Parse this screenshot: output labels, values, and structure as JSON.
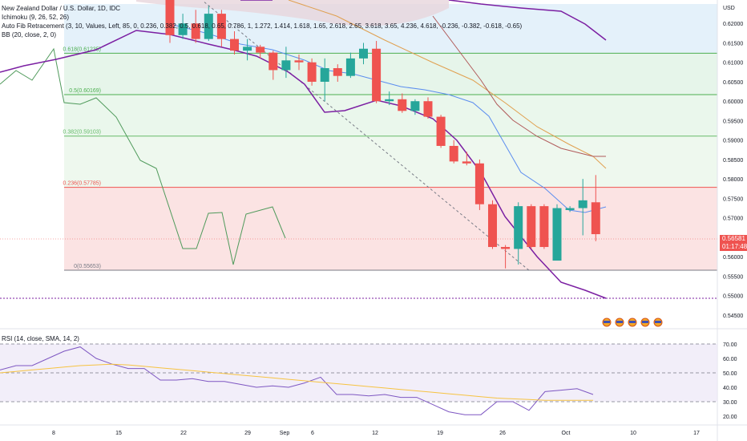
{
  "header": {
    "symbol": "New Zealand Dollar / U.S. Dollar, 1D, IDC",
    "ind1": "Ichimoku (9, 26, 52, 26)",
    "ind2": "Auto Fib Retracement (3, 10, Values, Left, 85, 0, 0.236, 0.382, 0.5, 0.618, 0.65, 0.786, 1, 1.272, 1.414, 1.618, 1.65, 2.618, 2.65, 3.618, 3.65, 4.236, 4.618, -0.236, -0.382, -0.618, -0.65)",
    "ind3": "BB (20, close, 2, 0)",
    "rsi": "RSI (14, close, SMA, 14, 2)"
  },
  "price_badge": {
    "price": "0.56581",
    "countdown": "01:17:48"
  },
  "colors": {
    "up": "#26a69a",
    "down": "#ef5350",
    "ichimoku_base": "#7b1fa2",
    "bb_basis": "#5b8def",
    "bb_band": "#b05a5a",
    "rsi_line": "#7e57c2",
    "rsi_ma": "#f6c342"
  },
  "chart_data": [
    {
      "type": "candlestick",
      "currency": "USD",
      "ylim": [
        0.5425,
        0.625
      ],
      "x_labels": [
        "8",
        "15",
        "22",
        "29",
        "Sep",
        "6",
        "12",
        "19",
        "26",
        "Oct",
        "10",
        "17"
      ],
      "y_ticks": [
        "0.62000",
        "0.61500",
        "0.61000",
        "0.60500",
        "0.60000",
        "0.59500",
        "0.59000",
        "0.58500",
        "0.58000",
        "0.57500",
        "0.57000",
        "0.56500",
        "0.56000",
        "0.55500",
        "0.55000",
        "0.54500"
      ],
      "fib_levels": [
        {
          "label": "0.618(0.61235)",
          "value": 0.61235,
          "color": "#4caf50"
        },
        {
          "label": "0.5(0.60169)",
          "value": 0.60169,
          "color": "#4caf50"
        },
        {
          "label": "0.382(0.59103)",
          "value": 0.59103,
          "color": "#66bb6a"
        },
        {
          "label": "0.236(0.57785)",
          "value": 0.57785,
          "color": "#ef5350"
        },
        {
          "label": "0(0.55653)",
          "value": 0.55653,
          "color": "#787b86"
        }
      ],
      "candles": [
        {
          "o": 0.6265,
          "h": 0.6275,
          "l": 0.615,
          "c": 0.617
        },
        {
          "o": 0.617,
          "h": 0.6225,
          "l": 0.616,
          "c": 0.62
        },
        {
          "o": 0.62,
          "h": 0.6235,
          "l": 0.615,
          "c": 0.616
        },
        {
          "o": 0.616,
          "h": 0.6245,
          "l": 0.6155,
          "c": 0.6225
        },
        {
          "o": 0.6225,
          "h": 0.6235,
          "l": 0.614,
          "c": 0.616
        },
        {
          "o": 0.616,
          "h": 0.618,
          "l": 0.612,
          "c": 0.613
        },
        {
          "o": 0.613,
          "h": 0.616,
          "l": 0.6105,
          "c": 0.614
        },
        {
          "o": 0.614,
          "h": 0.6145,
          "l": 0.611,
          "c": 0.6125
        },
        {
          "o": 0.6125,
          "h": 0.613,
          "l": 0.6055,
          "c": 0.608
        },
        {
          "o": 0.608,
          "h": 0.614,
          "l": 0.606,
          "c": 0.6105
        },
        {
          "o": 0.6105,
          "h": 0.612,
          "l": 0.608,
          "c": 0.61
        },
        {
          "o": 0.61,
          "h": 0.611,
          "l": 0.604,
          "c": 0.605
        },
        {
          "o": 0.605,
          "h": 0.611,
          "l": 0.6,
          "c": 0.6085
        },
        {
          "o": 0.6085,
          "h": 0.6095,
          "l": 0.605,
          "c": 0.6065
        },
        {
          "o": 0.6065,
          "h": 0.6125,
          "l": 0.606,
          "c": 0.611
        },
        {
          "o": 0.611,
          "h": 0.615,
          "l": 0.6095,
          "c": 0.6135
        },
        {
          "o": 0.6135,
          "h": 0.6155,
          "l": 0.5995,
          "c": 0.6
        },
        {
          "o": 0.6,
          "h": 0.6025,
          "l": 0.599,
          "c": 0.6005
        },
        {
          "o": 0.6005,
          "h": 0.602,
          "l": 0.597,
          "c": 0.5975
        },
        {
          "o": 0.5975,
          "h": 0.6005,
          "l": 0.5965,
          "c": 0.6
        },
        {
          "o": 0.6,
          "h": 0.601,
          "l": 0.5955,
          "c": 0.596
        },
        {
          "o": 0.596,
          "h": 0.5965,
          "l": 0.588,
          "c": 0.5885
        },
        {
          "o": 0.5885,
          "h": 0.59,
          "l": 0.584,
          "c": 0.5845
        },
        {
          "o": 0.5845,
          "h": 0.587,
          "l": 0.5835,
          "c": 0.584
        },
        {
          "o": 0.584,
          "h": 0.585,
          "l": 0.572,
          "c": 0.5735
        },
        {
          "o": 0.5735,
          "h": 0.5745,
          "l": 0.562,
          "c": 0.5625
        },
        {
          "o": 0.5625,
          "h": 0.563,
          "l": 0.557,
          "c": 0.562
        },
        {
          "o": 0.562,
          "h": 0.574,
          "l": 0.558,
          "c": 0.573
        },
        {
          "o": 0.573,
          "h": 0.5735,
          "l": 0.562,
          "c": 0.5625
        },
        {
          "o": 0.573,
          "h": 0.5735,
          "l": 0.562,
          "c": 0.5625
        },
        {
          "o": 0.559,
          "h": 0.5735,
          "l": 0.559,
          "c": 0.5725
        },
        {
          "o": 0.572,
          "h": 0.573,
          "l": 0.5715,
          "c": 0.5725
        },
        {
          "o": 0.5725,
          "h": 0.58,
          "l": 0.5655,
          "c": 0.5745
        },
        {
          "o": 0.574,
          "h": 0.581,
          "l": 0.564,
          "c": 0.5658
        }
      ]
    },
    {
      "type": "line",
      "title": "RSI (14, close, SMA, 14, 2)",
      "ylim": [
        15,
        75
      ],
      "y_ticks": [
        "70.00",
        "60.00",
        "50.00",
        "40.00",
        "30.00",
        "20.00"
      ],
      "bands": [
        30,
        50,
        70
      ],
      "series": [
        {
          "name": "RSI",
          "values": [
            52,
            55,
            55,
            60,
            65,
            68,
            60,
            56,
            53,
            53,
            45,
            45,
            46,
            44,
            44,
            42,
            40,
            41,
            40,
            43,
            47,
            35,
            35,
            34,
            35,
            33,
            33,
            28,
            23,
            21,
            21,
            30,
            30,
            24,
            37,
            38,
            39,
            35
          ]
        },
        {
          "name": "RSI-based MA",
          "values": [
            50,
            51,
            52,
            53,
            54,
            55,
            55.5,
            56,
            55.5,
            54.5,
            53.5,
            52.5,
            51.5,
            50.5,
            49.5,
            48.5,
            47.5,
            46.5,
            45.5,
            44.5,
            43.5,
            42.5,
            41.5,
            40.5,
            39.5,
            38.5,
            37.5,
            36.5,
            35.5,
            34.5,
            33.5,
            32.5,
            32,
            31.5,
            31,
            31,
            31,
            31
          ]
        }
      ]
    }
  ]
}
